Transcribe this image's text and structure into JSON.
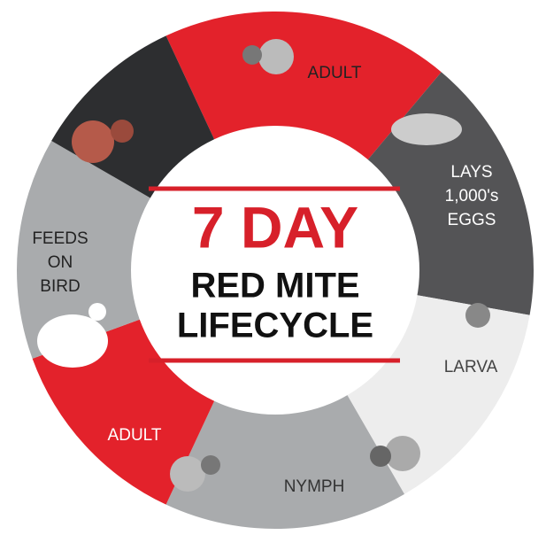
{
  "center": {
    "title": "7 DAY",
    "lines": [
      "RED MITE",
      "LIFECYCLE"
    ]
  },
  "stages": [
    {
      "label": [
        "ADULT"
      ]
    },
    {
      "label": [
        "LAYS",
        "1,000's",
        "EGGS"
      ]
    },
    {
      "label": [
        "LARVA"
      ]
    },
    {
      "label": [
        "NYMPH"
      ]
    },
    {
      "label": [
        "ADULT"
      ]
    },
    {
      "label": [
        "FEEDS",
        "ON",
        "BIRD"
      ]
    }
  ]
}
